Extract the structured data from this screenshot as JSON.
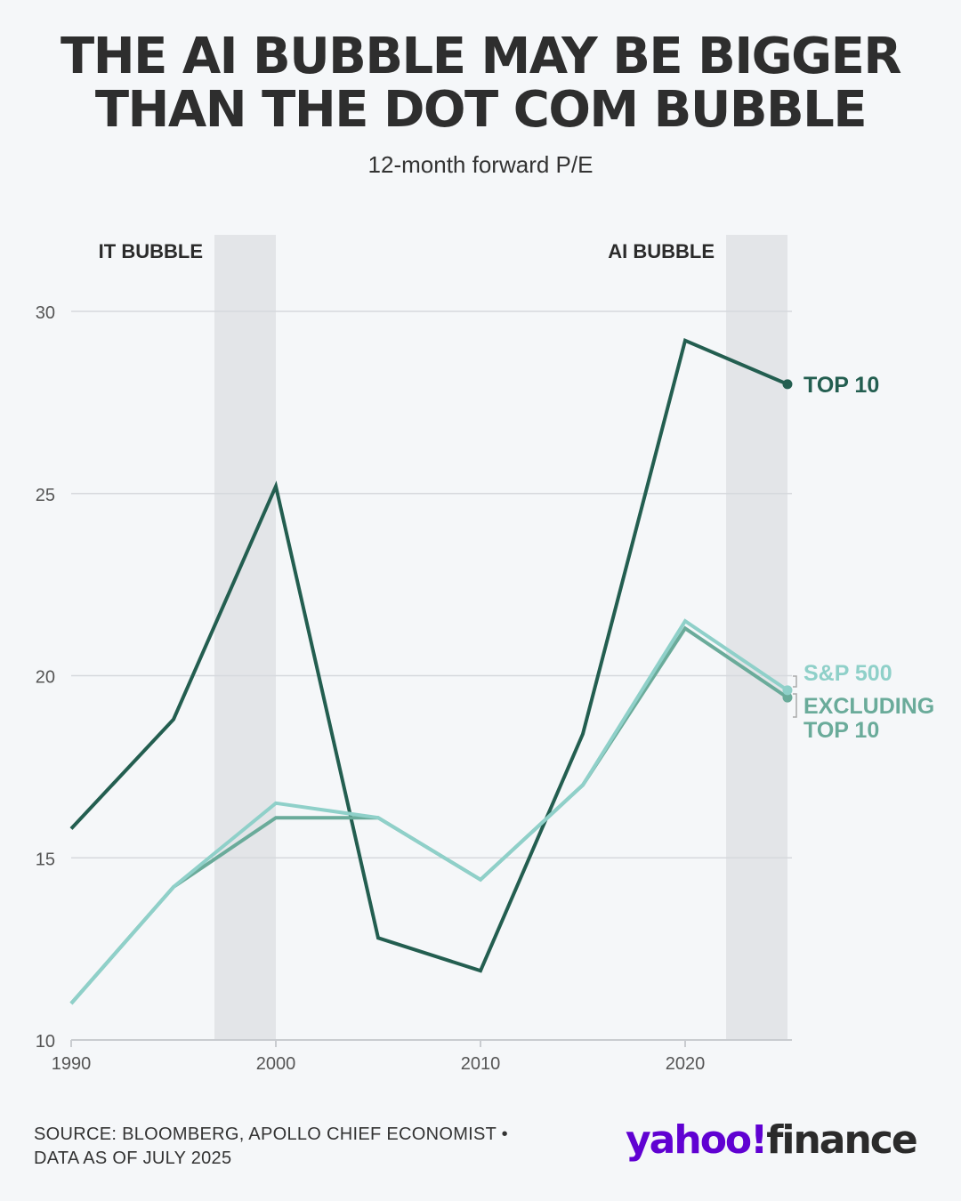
{
  "header": {
    "title_line1": "THE AI BUBBLE MAY BE BIGGER",
    "title_line2": "THAN THE DOT COM BUBBLE",
    "subtitle": "12-month forward P/E"
  },
  "footer": {
    "source_line1": "SOURCE: BLOOMBERG, APOLLO CHIEF ECONOMIST •",
    "source_line2": "DATA AS OF JULY 2025"
  },
  "logo": {
    "part1": "yahoo!",
    "part2": "finance"
  },
  "chart_data": {
    "type": "line",
    "title": "THE AI BUBBLE MAY BE BIGGER THAN THE DOT COM BUBBLE",
    "subtitle": "12-month forward P/E",
    "xlim": [
      1990,
      2025
    ],
    "ylim": [
      10,
      32
    ],
    "x_ticks": [
      1990,
      2000,
      2010,
      2020
    ],
    "y_ticks": [
      10,
      15,
      20,
      25,
      30
    ],
    "grid": true,
    "shaded_regions": [
      {
        "label": "IT BUBBLE",
        "from": 1997,
        "to": 2000
      },
      {
        "label": "AI BUBBLE",
        "from": 2022,
        "to": 2025
      }
    ],
    "series": [
      {
        "name": "TOP 10",
        "color": "#235e50",
        "x": [
          1990,
          1995,
          2000,
          2005,
          2010,
          2015,
          2020,
          2025
        ],
        "values": [
          15.8,
          18.8,
          25.2,
          12.8,
          11.9,
          18.4,
          29.2,
          28.0
        ]
      },
      {
        "name": "EXCLUDING TOP 10",
        "color": "#6aab9a",
        "x": [
          1990,
          1995,
          2000,
          2005,
          2010,
          2015,
          2020,
          2025
        ],
        "values": [
          11.0,
          14.2,
          16.1,
          16.1,
          14.4,
          17.0,
          21.3,
          19.4
        ]
      },
      {
        "name": "S&P 500",
        "color": "#8fd0c9",
        "x": [
          1990,
          1995,
          2000,
          2005,
          2010,
          2015,
          2020,
          2025
        ],
        "values": [
          11.0,
          14.2,
          16.5,
          16.1,
          14.4,
          17.0,
          21.5,
          19.6
        ]
      }
    ]
  }
}
